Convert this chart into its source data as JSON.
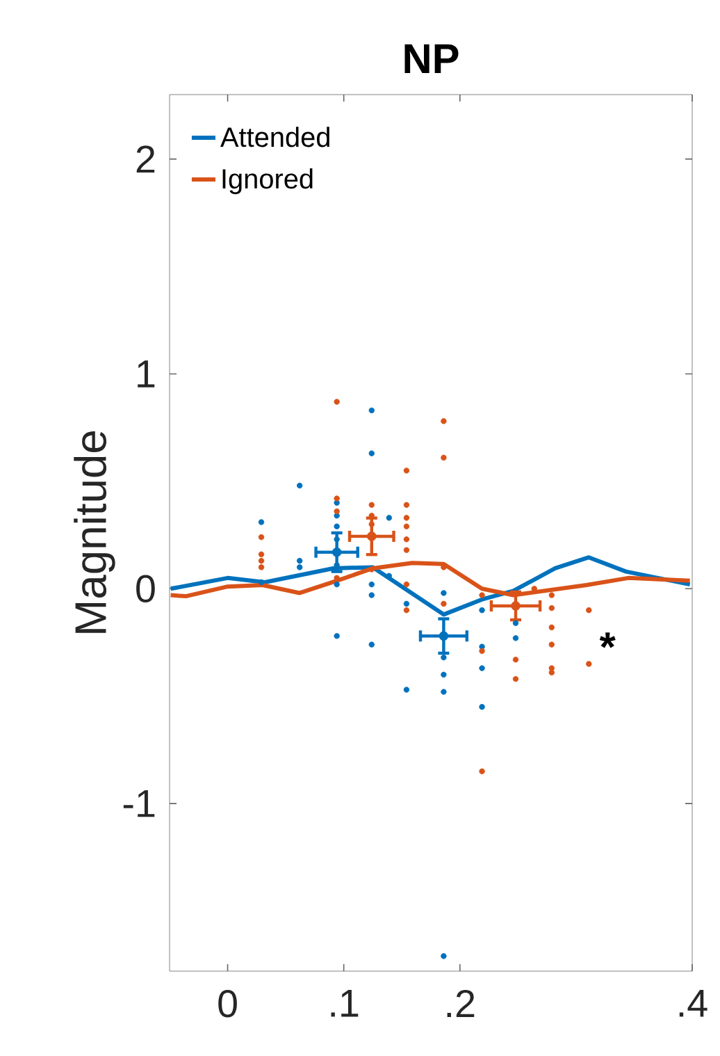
{
  "chart_data": {
    "type": "scatter",
    "title": "NP",
    "ylabel": "Magnitude",
    "xlim": [
      -0.05,
      0.4
    ],
    "ylim": [
      -1.78,
      2.3
    ],
    "xticks": [
      0,
      {
        "value": 0.1,
        "label": ".1"
      },
      {
        "value": 0.2,
        "label": ".2"
      },
      {
        "value": 0.4,
        "label": ".4"
      }
    ],
    "yticks": [
      -1,
      0,
      1,
      2
    ],
    "legend": "top left",
    "annotations": [
      "*"
    ],
    "series": [
      {
        "name": "Attended",
        "type": "line",
        "marker": "none",
        "color": "#0072bd",
        "x": [
          -0.049,
          0,
          0.032,
          0.091,
          0.125,
          0.186,
          0.219,
          0.246,
          0.282,
          0.311,
          0.343,
          0.398
        ],
        "values": [
          0,
          0.05,
          0.03,
          0.095,
          0.1,
          -0.12,
          -0.05,
          -0.01,
          0.095,
          0.146,
          0.08,
          0.02
        ]
      },
      {
        "name": "Ignored",
        "type": "line",
        "marker": "none",
        "color": "#d95319",
        "x": [
          -0.049,
          -0.036,
          0,
          0.03,
          0.062,
          0.094,
          0.125,
          0.159,
          0.186,
          0.219,
          0.246,
          0.309,
          0.345,
          0.398
        ],
        "values": [
          -0.03,
          -0.035,
          0.01,
          0.017,
          -0.02,
          0.037,
          0.095,
          0.12,
          0.115,
          0,
          -0.03,
          0.017,
          0.05,
          0.037
        ]
      },
      {
        "marker": "circle",
        "color": "#0072bd",
        "x": [
          0.029,
          0.029,
          0.062,
          0.062,
          0.062,
          0.094,
          0.094,
          0.094,
          0.094,
          0.094,
          0.094,
          0.094,
          0.124,
          0.124,
          0.124,
          0.124,
          0.124,
          0.139,
          0.139,
          0.154,
          0.154,
          0.186,
          0.186,
          0.186,
          0.186,
          0.186,
          0.219,
          0.219,
          0.219,
          0.219,
          0.248,
          0.248
        ],
        "values": [
          0.31,
          0.03,
          0.48,
          0.13,
          0.1,
          0.4,
          0.34,
          0.29,
          0.23,
          0.11,
          0.02,
          -0.22,
          0.83,
          0.63,
          0.02,
          -0.03,
          -0.26,
          0.33,
          0.06,
          -0.07,
          -0.47,
          -0.02,
          -0.32,
          -0.4,
          -0.48,
          -1.71,
          -0.1,
          -0.27,
          -0.37,
          -0.55,
          -0.16,
          -0.23
        ]
      },
      {
        "marker": "circle",
        "color": "#d95319",
        "x": [
          0.029,
          0.029,
          0.029,
          0.029,
          0.094,
          0.094,
          0.094,
          0.094,
          0.124,
          0.124,
          0.124,
          0.124,
          0.154,
          0.154,
          0.154,
          0.154,
          0.154,
          0.154,
          0.154,
          0.154,
          0.186,
          0.186,
          0.186,
          0.186,
          0.219,
          0.219,
          0.219,
          0.248,
          0.248,
          0.264,
          0.279,
          0.279,
          0.279,
          0.279,
          0.279,
          0.279,
          0.311,
          0.311
        ],
        "values": [
          0.24,
          0.16,
          0.13,
          0.1,
          0.87,
          0.42,
          0.36,
          0.05,
          0.39,
          0.34,
          0.3,
          0.09,
          0.55,
          0.39,
          0.33,
          0.29,
          0.23,
          0.18,
          0.02,
          -0.1,
          0.78,
          0.61,
          0.1,
          -0.07,
          -0.03,
          -0.29,
          -0.85,
          -0.33,
          -0.42,
          0,
          -0.03,
          -0.09,
          -0.18,
          -0.26,
          -0.37,
          -0.39,
          -0.1,
          -0.35
        ]
      },
      {
        "marker": "circle",
        "color": "#0072bd",
        "x": [
          0.094,
          0.186
        ],
        "values": [
          0.17,
          -0.22
        ],
        "errors": [
          0.09,
          0.08
        ],
        "xerrors": [
          0.018,
          0.02
        ]
      },
      {
        "marker": "circle",
        "color": "#d95319",
        "x": [
          0.124,
          0.248
        ],
        "values": [
          0.244,
          -0.08
        ],
        "errors": [
          0.085,
          0.065
        ],
        "xerrors": [
          0.019,
          0.021
        ]
      }
    ]
  }
}
